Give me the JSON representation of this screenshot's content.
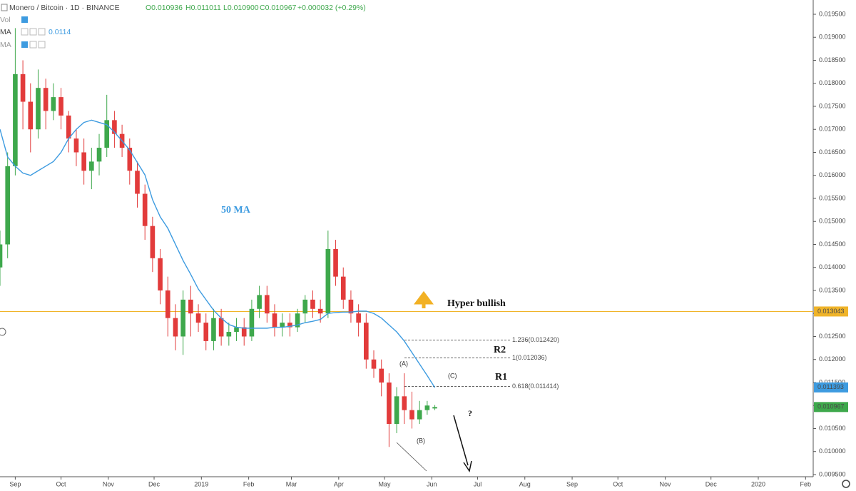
{
  "chart_data": {
    "type": "candlestick",
    "title": "Monero / Bitcoin · 1D · BINANCE",
    "ohlc_labels": [
      "O0.010936",
      "H0.011011",
      "L0.010900",
      "C0.010967",
      "+0.000032 (+0.29%)"
    ],
    "indicators": [
      "Vol",
      "MA",
      "MA"
    ],
    "indicator_value": "0.0114",
    "xlim": [
      -10,
      523
    ],
    "xticks": [
      {
        "value": 0,
        "label": "Sep"
      },
      {
        "value": 30,
        "label": "Oct"
      },
      {
        "value": 61,
        "label": "Nov"
      },
      {
        "value": 91,
        "label": "Dec"
      },
      {
        "value": 122,
        "label": "2019"
      },
      {
        "value": 153,
        "label": "Feb"
      },
      {
        "value": 181,
        "label": "Mar"
      },
      {
        "value": 212,
        "label": "Apr"
      },
      {
        "value": 242,
        "label": "May"
      },
      {
        "value": 273,
        "label": "Jun"
      },
      {
        "value": 303,
        "label": "Jul"
      },
      {
        "value": 334,
        "label": "Aug"
      },
      {
        "value": 365,
        "label": "Sep"
      },
      {
        "value": 395,
        "label": "Oct"
      },
      {
        "value": 426,
        "label": "Nov"
      },
      {
        "value": 456,
        "label": "Dec"
      },
      {
        "value": 487,
        "label": "2020"
      },
      {
        "value": 518,
        "label": "Feb"
      }
    ],
    "ylim": [
      0.009453,
      0.01981
    ],
    "yticks": [
      {
        "value": 0.0095,
        "label": "0.009500"
      },
      {
        "value": 0.01,
        "label": "0.010000"
      },
      {
        "value": 0.0105,
        "label": "0.010500"
      },
      {
        "value": 0.011,
        "label": "0.011000"
      },
      {
        "value": 0.0115,
        "label": "0.011500"
      },
      {
        "value": 0.012,
        "label": "0.012000"
      },
      {
        "value": 0.0125,
        "label": "0.012500"
      },
      {
        "value": 0.013,
        "label": "0.013000"
      },
      {
        "value": 0.0135,
        "label": "0.013500"
      },
      {
        "value": 0.014,
        "label": "0.014000"
      },
      {
        "value": 0.0145,
        "label": "0.014500"
      },
      {
        "value": 0.015,
        "label": "0.015000"
      },
      {
        "value": 0.0155,
        "label": "0.015500"
      },
      {
        "value": 0.016,
        "label": "0.016000"
      },
      {
        "value": 0.0165,
        "label": "0.016500"
      },
      {
        "value": 0.017,
        "label": "0.017000"
      },
      {
        "value": 0.0175,
        "label": "0.017500"
      },
      {
        "value": 0.018,
        "label": "0.018000"
      },
      {
        "value": 0.0185,
        "label": "0.018500"
      },
      {
        "value": 0.019,
        "label": "0.019000"
      },
      {
        "value": 0.0195,
        "label": "0.019500"
      }
    ],
    "up_color": "#3ea84c",
    "down_color": "#e23b3b",
    "x": [
      -10,
      -5,
      0,
      5,
      10,
      15,
      20,
      25,
      30,
      35,
      40,
      45,
      50,
      55,
      60,
      65,
      70,
      75,
      80,
      85,
      90,
      95,
      100,
      105,
      110,
      115,
      120,
      125,
      130,
      135,
      140,
      145,
      150,
      155,
      160,
      165,
      170,
      175,
      180,
      185,
      190,
      195,
      200,
      205,
      210,
      215,
      220,
      225,
      230,
      235,
      240,
      245,
      250,
      255,
      260,
      265,
      270,
      275
    ],
    "open": [
      0.014,
      0.0145,
      0.0162,
      0.0182,
      0.0176,
      0.017,
      0.0179,
      0.0174,
      0.0177,
      0.0173,
      0.0168,
      0.0165,
      0.0161,
      0.0163,
      0.0166,
      0.0172,
      0.0169,
      0.0166,
      0.0161,
      0.0156,
      0.0149,
      0.0142,
      0.0135,
      0.0129,
      0.0125,
      0.0133,
      0.013,
      0.0128,
      0.0124,
      0.0129,
      0.0125,
      0.0126,
      0.0127,
      0.0125,
      0.0131,
      0.0134,
      0.013,
      0.0127,
      0.0128,
      0.0127,
      0.013,
      0.0133,
      0.0131,
      0.013,
      0.0144,
      0.0138,
      0.0133,
      0.013,
      0.0128,
      0.012,
      0.0118,
      0.0115,
      0.0106,
      0.0112,
      0.0109,
      0.0107,
      0.0109,
      0.010936
    ],
    "high": [
      0.0148,
      0.0165,
      0.0192,
      0.0185,
      0.018,
      0.0183,
      0.0181,
      0.018,
      0.0179,
      0.0174,
      0.017,
      0.0168,
      0.0166,
      0.0169,
      0.01775,
      0.0174,
      0.0171,
      0.0168,
      0.0163,
      0.0158,
      0.0151,
      0.0144,
      0.0138,
      0.0132,
      0.0135,
      0.0136,
      0.0132,
      0.013,
      0.0131,
      0.0131,
      0.0128,
      0.0129,
      0.0129,
      0.0133,
      0.0136,
      0.0136,
      0.0132,
      0.013,
      0.013,
      0.0131,
      0.0134,
      0.0135,
      0.0133,
      0.0148,
      0.0146,
      0.014,
      0.0135,
      0.0132,
      0.013,
      0.0122,
      0.012,
      0.0117,
      0.0114,
      0.0117,
      0.0113,
      0.0111,
      0.0111,
      0.011011
    ],
    "low": [
      0.0136,
      0.0142,
      0.016,
      0.017,
      0.0165,
      0.0168,
      0.017,
      0.0172,
      0.017,
      0.0165,
      0.0162,
      0.0158,
      0.0157,
      0.016,
      0.0164,
      0.0166,
      0.0164,
      0.0158,
      0.0153,
      0.0146,
      0.0139,
      0.0132,
      0.0125,
      0.0122,
      0.0121,
      0.0125,
      0.0126,
      0.0122,
      0.0122,
      0.0123,
      0.0123,
      0.0124,
      0.0123,
      0.0124,
      0.0129,
      0.0128,
      0.0125,
      0.0125,
      0.0125,
      0.0126,
      0.0128,
      0.0129,
      0.0128,
      0.0129,
      0.0136,
      0.0131,
      0.0128,
      0.0125,
      0.0118,
      0.0116,
      0.0112,
      0.0101,
      0.0104,
      0.0106,
      0.0105,
      0.0106,
      0.0108,
      0.0109
    ],
    "close": [
      0.0145,
      0.0162,
      0.0182,
      0.0176,
      0.017,
      0.0179,
      0.0174,
      0.0177,
      0.0173,
      0.0168,
      0.0165,
      0.0161,
      0.0163,
      0.0166,
      0.0172,
      0.0169,
      0.0166,
      0.0161,
      0.0156,
      0.0149,
      0.0142,
      0.0135,
      0.0129,
      0.0125,
      0.0133,
      0.013,
      0.0128,
      0.0124,
      0.0129,
      0.0125,
      0.0126,
      0.0127,
      0.0125,
      0.0131,
      0.0134,
      0.013,
      0.0127,
      0.0128,
      0.0127,
      0.013,
      0.0133,
      0.0131,
      0.013,
      0.0144,
      0.0138,
      0.0133,
      0.013,
      0.0128,
      0.012,
      0.0118,
      0.0115,
      0.0106,
      0.0112,
      0.0109,
      0.0107,
      0.0109,
      0.011,
      0.010967
    ],
    "series": [
      {
        "name": "50 MA",
        "color": "#3d9be0",
        "values": [
          0.017,
          0.0164,
          0.0162,
          0.01605,
          0.016,
          0.0161,
          0.0162,
          0.0163,
          0.0165,
          0.0168,
          0.017,
          0.01715,
          0.0172,
          0.01715,
          0.0171,
          0.01694,
          0.01675,
          0.01655,
          0.01628,
          0.01601,
          0.01547,
          0.0151,
          0.01485,
          0.0145,
          0.01415,
          0.01385,
          0.01353,
          0.0133,
          0.01307,
          0.0129,
          0.01276,
          0.0127,
          0.01268,
          0.01268,
          0.01268,
          0.01268,
          0.0127,
          0.0127,
          0.01272,
          0.01275,
          0.0128,
          0.01283,
          0.01287,
          0.013,
          0.01302,
          0.01303,
          0.01303,
          0.01305,
          0.01305,
          0.013,
          0.0129,
          0.01275,
          0.0126,
          0.0124,
          0.01215,
          0.0119,
          0.01165,
          0.01139
        ]
      }
    ],
    "fib_levels": [
      {
        "label": "1.236(0.012420)",
        "value": 0.01242
      },
      {
        "label": "1(0.012036)",
        "value": 0.012036
      },
      {
        "label": "0.618(0.011414)",
        "value": 0.011414
      }
    ],
    "price_tags": [
      {
        "value": 0.013043,
        "color": "#f0b429"
      },
      {
        "value": 0.011393,
        "color": "#3d9be0"
      },
      {
        "value": 0.010967,
        "color": "#3ea84c"
      }
    ],
    "annotations": [
      "Hyper bullish",
      "R2",
      "R1",
      "(A)",
      "(B)",
      "(C)",
      "?"
    ]
  }
}
